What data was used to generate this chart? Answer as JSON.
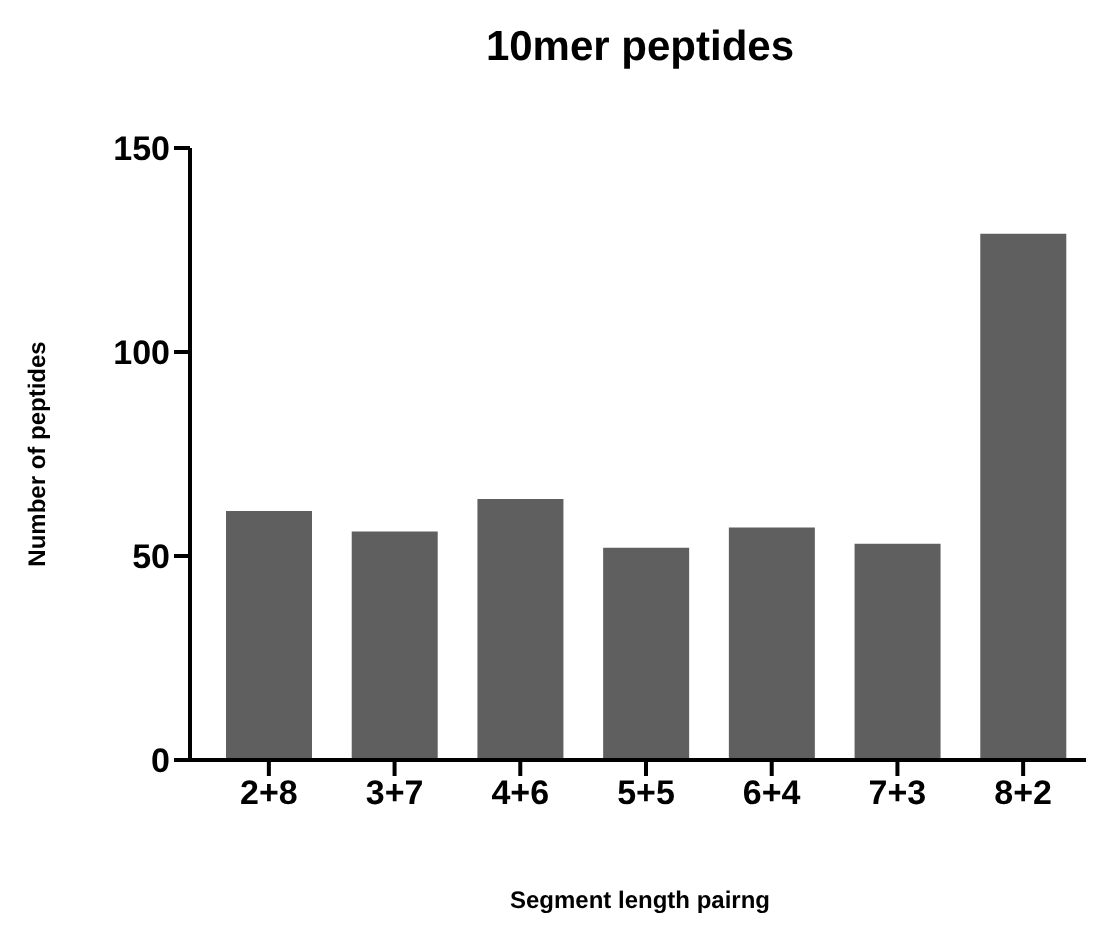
{
  "chart_data": {
    "type": "bar",
    "title": "10mer peptides",
    "xlabel": "Segment length pairng",
    "ylabel": "Number of peptides",
    "categories": [
      "2+8",
      "3+7",
      "4+6",
      "5+5",
      "6+4",
      "7+3",
      "8+2"
    ],
    "values": [
      61,
      56,
      64,
      52,
      57,
      53,
      129
    ],
    "color": "#5f5f5f",
    "ylim": [
      0,
      150
    ],
    "yticks": [
      0,
      50,
      100,
      150
    ],
    "grid": false,
    "legend": false
  }
}
